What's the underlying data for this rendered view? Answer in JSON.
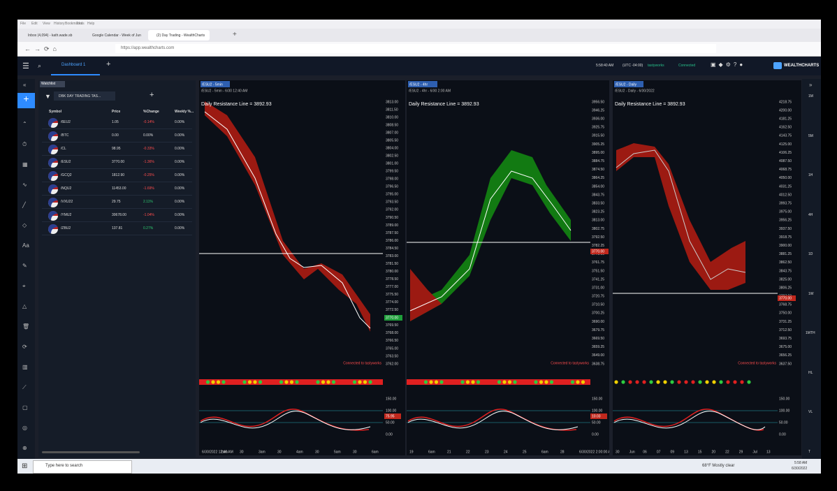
{
  "browser": {
    "menu": [
      "File",
      "Edit",
      "View",
      "History",
      "Bookmarks",
      "Tools",
      "Help"
    ],
    "tabs": [
      "Inbox (4,094) - kath.wade.sb",
      "Google Calendar - Week of Jun",
      "(2) Day Trading - WealthCharts"
    ],
    "url": "https://app.wealthcharts.com"
  },
  "app": {
    "tab": "Dashboard 1",
    "time": "5:58:40 AM",
    "timezone": "(UTC -04:00)",
    "broker": "tastyworks",
    "status": "Connected",
    "logo": "WEALTHCHARTS"
  },
  "watchlist": {
    "title": "Watchlist",
    "name": "DBK DAY TRADING TAS...",
    "columns": [
      "Symbol",
      "Price",
      "%Change",
      "Weekly %..."
    ],
    "rows": [
      [
        "/6EU2",
        "1.05",
        "-0.14%",
        "0.00%"
      ],
      [
        "/BTC",
        "0.00",
        "0.00%",
        "0.00%"
      ],
      [
        "/CL",
        "98.95",
        "-0.33%",
        "0.00%"
      ],
      [
        "/ESU2",
        "3770.00",
        "-1.36%",
        "0.00%"
      ],
      [
        "/GCQ2",
        "1812.90",
        "-0.25%",
        "0.00%"
      ],
      [
        "/NQU2",
        "11453.00",
        "-1.69%",
        "0.00%"
      ],
      [
        "/VXU22",
        "29.75",
        "2.11%",
        "0.00%"
      ],
      [
        "/YMU2",
        "30678.00",
        "-1.04%",
        "0.00%"
      ],
      [
        "/ZBU2",
        "137.81",
        "0.27%",
        "0.00%"
      ]
    ]
  },
  "charts": [
    {
      "tab": "/ESU2 - 5min",
      "header": "/ESU2 - 5min - 6/30 12:40 AM",
      "annotation": "Daily Resistance Line = 3892.93",
      "status": "Connected to tastyworks",
      "price_axis": [
        "3813.00",
        "3811.50",
        "3810.00",
        "3808.50",
        "3807.00",
        "3805.50",
        "3804.00",
        "3802.50",
        "3801.00",
        "3799.50",
        "3798.00",
        "3796.50",
        "3795.00",
        "3793.50",
        "3792.00",
        "3790.50",
        "3789.00",
        "3787.50",
        "3786.00",
        "3784.50",
        "3783.00",
        "3781.50",
        "3780.00",
        "3778.50",
        "3777.00",
        "3775.50",
        "3774.00",
        "3772.50",
        "3771.00",
        "3769.50",
        "3768.00",
        "3766.50",
        "3765.00",
        "3763.50",
        "3762.00"
      ],
      "price_marker": "3770.00",
      "osc_axis": [
        "150.00",
        "100.00",
        "50.00",
        "0.00"
      ],
      "osc_value": "75.95",
      "time_axis": [
        "6/30/2022 12:40 AM",
        "2am",
        "30",
        "3am",
        "30",
        "4am",
        "30",
        "5am",
        "30",
        "6am"
      ]
    },
    {
      "tab": "/ESU2 - 4hr",
      "header": "/ESU2 - 4hr - 6/30 2:00 AM",
      "annotation": "Daily Resistance Line = 3892.93",
      "status": "Connected to tastyworks",
      "price_axis": [
        "3956.50",
        "3946.25",
        "3936.00",
        "3925.75",
        "3915.50",
        "3905.25",
        "3895.00",
        "3884.75",
        "3874.50",
        "3864.25",
        "3854.00",
        "3843.75",
        "3833.50",
        "3823.25",
        "3813.00",
        "3802.75",
        "3792.50",
        "3782.25",
        "3772.00",
        "3761.75",
        "3751.50",
        "3741.25",
        "3731.00",
        "3720.75",
        "3710.50",
        "3700.25",
        "3690.00",
        "3679.75",
        "3669.50",
        "3659.25",
        "3649.00",
        "3638.75"
      ],
      "price_marker": "3770.00",
      "osc_axis": [
        "150.00",
        "100.00",
        "50.00",
        "0.00"
      ],
      "osc_value": "10.03",
      "time_axis": [
        "19",
        "6am",
        "21",
        "22",
        "23",
        "24",
        "25",
        "6am",
        "28",
        "6/30/2022 2:00:00 AM"
      ]
    },
    {
      "tab": "/ESU2 - Daily",
      "header": "/ESU2 - Daily - 6/30/2022",
      "annotation": "Daily Resistance Line = 3892.93",
      "status": "Connected to tastyworks",
      "price_axis": [
        "4218.75",
        "4200.00",
        "4181.25",
        "4162.50",
        "4143.75",
        "4125.00",
        "4106.25",
        "4087.50",
        "4068.75",
        "4050.00",
        "4031.25",
        "4012.50",
        "3993.75",
        "3975.00",
        "3956.25",
        "3937.50",
        "3918.75",
        "3900.00",
        "3881.25",
        "3862.50",
        "3843.75",
        "3825.00",
        "3806.25",
        "3787.50",
        "3768.75",
        "3750.00",
        "3731.25",
        "3712.50",
        "3693.75",
        "3675.00",
        "3656.25",
        "3637.50"
      ],
      "price_marker": "3770.00",
      "osc_axis": [
        "150.00",
        "100.00",
        "50.00",
        "0.00"
      ],
      "osc_value": "",
      "time_axis": [
        "30",
        "Jun",
        "06",
        "07",
        "09",
        "13",
        "15",
        "20",
        "22",
        "29",
        "Jul",
        "13"
      ]
    }
  ],
  "timeframes": [
    "1M",
    "5M",
    "1H",
    "4H",
    "1D",
    "1W",
    "1MTH",
    "HL",
    "VL",
    "T"
  ],
  "taskbar": {
    "search": "Type here to search",
    "weather": "68°F  Mostly clear",
    "clock": "5:58 AM",
    "date": "6/30/2022"
  }
}
